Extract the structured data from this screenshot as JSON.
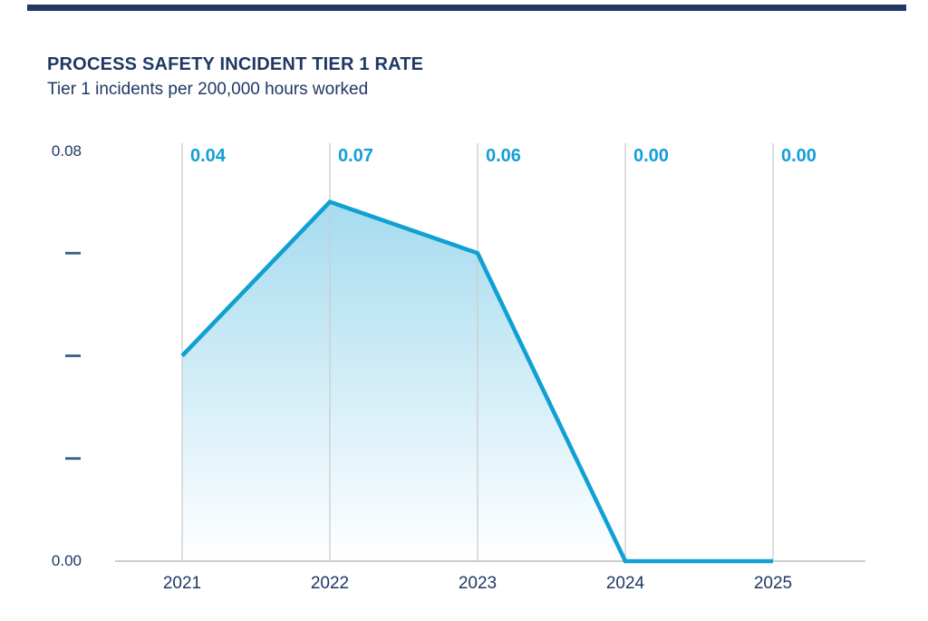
{
  "header": {
    "title": "PROCESS SAFETY INCIDENT TIER 1 RATE",
    "subtitle": "Tier 1 incidents per 200,000 hours worked"
  },
  "colors": {
    "navy": "#1F3864",
    "accent": "#149ED9",
    "line": "#11A0D4",
    "area_top": "#A5DBEF",
    "area_bottom": "#FFFFFF",
    "gridline": "#CDCDCD",
    "axis_line": "#BDBDBD",
    "tick_dash": "#3A5C87",
    "top_bar": "#1F3864"
  },
  "chart_data": {
    "type": "area",
    "title": "PROCESS SAFETY INCIDENT TIER 1 RATE",
    "subtitle": "Tier 1 incidents per 200,000 hours worked",
    "categories": [
      "2021",
      "2022",
      "2023",
      "2024",
      "2025"
    ],
    "values": [
      0.04,
      0.07,
      0.06,
      0.0,
      0.0
    ],
    "data_labels": [
      "0.04",
      "0.07",
      "0.06",
      "0.00",
      "0.00"
    ],
    "xlabel": "",
    "ylabel": "Tier 1 incidents per 200,000 hours worked",
    "ylim": [
      0,
      0.08
    ],
    "y_axis": {
      "top_label": "0.08",
      "bottom_label": "0.00",
      "unlabeled_tick_values": [
        0.06,
        0.04,
        0.02
      ]
    },
    "grid": "vertical-only",
    "legend": "none"
  }
}
